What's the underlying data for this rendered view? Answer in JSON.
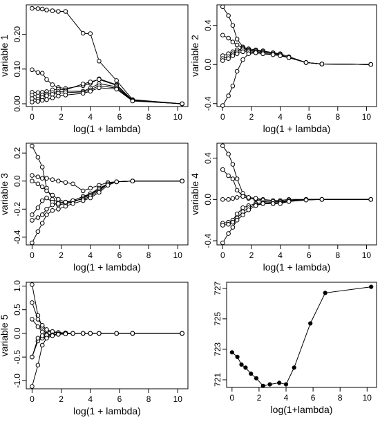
{
  "chart_data": [
    {
      "type": "line",
      "xlabel": "log(1 + lambda)",
      "ylabel": "variable 1",
      "xlim": [
        -0.4,
        10.7
      ],
      "ylim": [
        -0.008,
        0.285
      ],
      "xticks": [
        "0",
        "2",
        "4",
        "6",
        "8",
        "10"
      ],
      "yticks": [
        "0.00",
        "0.10",
        "0.20"
      ],
      "marker": "open-circle",
      "x": [
        0,
        0.4,
        0.7,
        1.0,
        1.4,
        1.8,
        2.3,
        3.5,
        4.0,
        4.6,
        5.8,
        6.9,
        10.3
      ],
      "series": [
        {
          "values": [
            0.275,
            0.274,
            0.273,
            0.27,
            0.268,
            0.266,
            0.266,
            0.203,
            0.202,
            0.123,
            0.067,
            0.012,
            0.0
          ]
        },
        {
          "values": [
            0.098,
            0.09,
            0.088,
            0.07,
            0.055,
            0.047,
            0.044,
            0.052,
            0.059,
            0.072,
            0.055,
            0.01,
            0.0
          ]
        },
        {
          "values": [
            0.033,
            0.032,
            0.033,
            0.035,
            0.04,
            0.042,
            0.04,
            0.057,
            0.063,
            0.07,
            0.053,
            0.01,
            0.0
          ]
        },
        {
          "values": [
            0.025,
            0.022,
            0.025,
            0.028,
            0.032,
            0.035,
            0.036,
            0.036,
            0.045,
            0.058,
            0.049,
            0.009,
            0.0
          ]
        },
        {
          "values": [
            0.015,
            0.013,
            0.018,
            0.023,
            0.027,
            0.03,
            0.032,
            0.034,
            0.04,
            0.052,
            0.045,
            0.009,
            0.0
          ]
        },
        {
          "values": [
            0.005,
            0.007,
            0.01,
            0.012,
            0.017,
            0.022,
            0.025,
            0.03,
            0.036,
            0.046,
            0.042,
            0.008,
            0.0
          ]
        }
      ]
    },
    {
      "type": "line",
      "xlabel": "log(1 + lambda)",
      "ylabel": "variable 2",
      "xlim": [
        -0.4,
        10.7
      ],
      "ylim": [
        -0.43,
        0.61
      ],
      "xticks": [
        "0",
        "2",
        "4",
        "6",
        "8",
        "10"
      ],
      "yticks": [
        "-0.4",
        "0.0",
        "0.4"
      ],
      "marker": "open-circle",
      "x": [
        0,
        0.4,
        0.7,
        1.0,
        1.4,
        1.8,
        2.3,
        2.8,
        3.5,
        4.0,
        4.6,
        5.8,
        6.9,
        10.3
      ],
      "series": [
        {
          "values": [
            0.59,
            0.5,
            0.4,
            0.26,
            0.18,
            0.16,
            0.15,
            0.14,
            0.12,
            0.11,
            0.08,
            0.02,
            0.005,
            0.0
          ]
        },
        {
          "values": [
            0.3,
            0.27,
            0.23,
            0.2,
            0.17,
            0.15,
            0.14,
            0.13,
            0.12,
            0.1,
            0.07,
            0.02,
            0.005,
            0.0
          ]
        },
        {
          "values": [
            0.09,
            0.11,
            0.13,
            0.15,
            0.16,
            0.15,
            0.14,
            0.13,
            0.12,
            0.1,
            0.07,
            0.02,
            0.005,
            0.0
          ]
        },
        {
          "values": [
            0.06,
            0.08,
            0.11,
            0.13,
            0.15,
            0.14,
            0.13,
            0.12,
            0.11,
            0.1,
            0.07,
            0.02,
            0.005,
            0.0
          ]
        },
        {
          "values": [
            0.04,
            0.06,
            0.09,
            0.11,
            0.13,
            0.13,
            0.12,
            0.11,
            0.1,
            0.09,
            0.07,
            0.02,
            0.005,
            0.0
          ]
        },
        {
          "values": [
            -0.42,
            -0.32,
            -0.22,
            -0.07,
            0.05,
            0.11,
            0.12,
            0.11,
            0.1,
            0.09,
            0.07,
            0.02,
            0.005,
            0.0
          ]
        }
      ]
    },
    {
      "type": "line",
      "xlabel": "log(1 + lambda)",
      "ylabel": "variable 3",
      "xlim": [
        -0.4,
        10.7
      ],
      "ylim": [
        -0.455,
        0.27
      ],
      "xticks": [
        "0",
        "2",
        "4",
        "6",
        "8",
        "10"
      ],
      "yticks": [
        "-0.4",
        "-0.2",
        "0.0",
        "0.2"
      ],
      "marker": "open-circle",
      "x": [
        0,
        0.4,
        0.7,
        1.0,
        1.4,
        1.8,
        2.3,
        2.8,
        3.5,
        4.0,
        4.6,
        5.2,
        5.8,
        6.9,
        10.3
      ],
      "series": [
        {
          "values": [
            0.25,
            0.17,
            0.1,
            -0.05,
            -0.13,
            -0.15,
            -0.15,
            -0.14,
            -0.11,
            -0.09,
            -0.06,
            -0.02,
            -0.005,
            0.0,
            0.0
          ]
        },
        {
          "values": [
            0.04,
            0.03,
            0.02,
            0.02,
            0.01,
            0.0,
            -0.01,
            -0.02,
            -0.07,
            -0.05,
            -0.03,
            -0.01,
            -0.005,
            0.0,
            0.0
          ]
        },
        {
          "values": [
            0.0,
            -0.02,
            -0.04,
            -0.07,
            -0.1,
            -0.13,
            -0.15,
            -0.15,
            -0.12,
            -0.09,
            -0.05,
            -0.02,
            -0.005,
            0.0,
            0.0
          ]
        },
        {
          "values": [
            -0.24,
            -0.19,
            -0.14,
            -0.12,
            -0.15,
            -0.17,
            -0.16,
            -0.15,
            -0.12,
            -0.1,
            -0.06,
            -0.02,
            -0.005,
            0.0,
            0.0
          ]
        },
        {
          "values": [
            -0.28,
            -0.26,
            -0.24,
            -0.2,
            -0.17,
            -0.16,
            -0.15,
            -0.14,
            -0.13,
            -0.11,
            -0.07,
            -0.02,
            -0.005,
            0.0,
            0.0
          ]
        },
        {
          "values": [
            -0.44,
            -0.36,
            -0.3,
            -0.24,
            -0.21,
            -0.2,
            -0.18,
            -0.16,
            -0.14,
            -0.12,
            -0.08,
            -0.03,
            -0.005,
            0.0,
            0.0
          ]
        }
      ]
    },
    {
      "type": "line",
      "xlabel": "log(1 + lambda)",
      "ylabel": "variable 4",
      "xlim": [
        -0.4,
        10.7
      ],
      "ylim": [
        -0.44,
        0.545
      ],
      "xticks": [
        "0",
        "2",
        "4",
        "6",
        "8",
        "10"
      ],
      "yticks": [
        "-0.4",
        "0.0",
        "0.4"
      ],
      "marker": "open-circle",
      "x": [
        0,
        0.4,
        0.7,
        1.0,
        1.4,
        1.8,
        2.3,
        2.8,
        3.5,
        4.0,
        4.6,
        5.8,
        6.9,
        10.3
      ],
      "series": [
        {
          "values": [
            0.52,
            0.44,
            0.34,
            0.2,
            0.06,
            0.02,
            0.01,
            0.0,
            -0.01,
            -0.01,
            0.0,
            0.0,
            0.0,
            0.0
          ]
        },
        {
          "values": [
            0.29,
            0.23,
            0.2,
            0.09,
            0.03,
            0.01,
            0.0,
            -0.02,
            -0.03,
            -0.02,
            -0.01,
            0.0,
            0.0,
            0.0
          ]
        },
        {
          "values": [
            0.0,
            0.0,
            0.01,
            0.02,
            0.03,
            0.02,
            0.01,
            -0.01,
            -0.02,
            -0.02,
            -0.01,
            0.0,
            0.0,
            0.0
          ]
        },
        {
          "values": [
            -0.23,
            -0.22,
            -0.2,
            -0.14,
            -0.08,
            -0.06,
            -0.04,
            -0.03,
            -0.04,
            -0.03,
            -0.01,
            0.0,
            0.0,
            0.0
          ]
        },
        {
          "values": [
            -0.25,
            -0.24,
            -0.22,
            -0.18,
            -0.12,
            -0.08,
            -0.05,
            -0.04,
            -0.04,
            -0.03,
            -0.02,
            -0.005,
            0.0,
            0.0
          ]
        },
        {
          "values": [
            -0.42,
            -0.33,
            -0.27,
            -0.2,
            -0.15,
            -0.1,
            -0.06,
            -0.04,
            -0.04,
            -0.04,
            -0.02,
            -0.005,
            0.0,
            0.0
          ]
        }
      ]
    },
    {
      "type": "line",
      "xlabel": "log(1 + lambda)",
      "ylabel": "variable 5",
      "xlim": [
        -0.4,
        10.7
      ],
      "ylim": [
        -1.17,
        1.08
      ],
      "xticks": [
        "0",
        "2",
        "4",
        "6",
        "8",
        "10"
      ],
      "yticks": [
        "-1.0",
        "-0.5",
        "0.0",
        "0.5",
        "1.0"
      ],
      "marker": "open-circle",
      "x": [
        0,
        0.4,
        0.7,
        1.0,
        1.4,
        1.8,
        2.3,
        2.8,
        3.5,
        4.0,
        4.6,
        5.8,
        6.9,
        10.3
      ],
      "series": [
        {
          "values": [
            1.03,
            0.38,
            0.13,
            0.05,
            0.02,
            0.01,
            0.01,
            0.0,
            0.0,
            0.0,
            0.0,
            0.0,
            0.0,
            0.0
          ]
        },
        {
          "values": [
            0.65,
            0.3,
            0.17,
            0.08,
            0.04,
            0.02,
            0.01,
            0.0,
            0.0,
            0.0,
            0.0,
            0.0,
            0.0,
            0.0
          ]
        },
        {
          "values": [
            0.3,
            0.14,
            0.03,
            -0.02,
            -0.03,
            -0.01,
            0.0,
            0.0,
            0.0,
            0.0,
            0.0,
            0.0,
            0.0,
            0.0
          ]
        },
        {
          "values": [
            -0.5,
            -0.16,
            -0.1,
            -0.07,
            -0.04,
            -0.02,
            -0.01,
            0.0,
            0.0,
            0.0,
            0.0,
            0.0,
            0.0,
            0.0
          ]
        },
        {
          "values": [
            -0.5,
            -0.1,
            -0.05,
            -0.04,
            -0.03,
            -0.02,
            -0.01,
            0.0,
            0.0,
            0.0,
            0.0,
            0.0,
            0.0,
            0.0
          ]
        },
        {
          "values": [
            -1.12,
            -0.67,
            -0.25,
            -0.1,
            -0.05,
            -0.02,
            -0.01,
            0.0,
            0.0,
            0.0,
            0.0,
            0.0,
            0.0,
            0.0
          ]
        }
      ]
    },
    {
      "type": "line",
      "xlabel": "log(1+lambda)",
      "ylabel": "",
      "xlim": [
        -0.4,
        10.7
      ],
      "ylim": [
        720.5,
        727.4
      ],
      "xticks": [
        "0",
        "2",
        "4",
        "6",
        "8",
        "10"
      ],
      "yticks": [
        "721",
        "723",
        "725",
        "727"
      ],
      "marker": "filled-circle",
      "x": [
        0,
        0.4,
        0.7,
        1.0,
        1.4,
        1.8,
        2.3,
        2.8,
        3.5,
        4.0,
        4.6,
        5.8,
        6.9,
        10.3
      ],
      "series": [
        {
          "values": [
            722.8,
            722.5,
            722.0,
            721.8,
            721.4,
            721.1,
            720.6,
            720.7,
            720.8,
            720.7,
            721.8,
            724.7,
            726.7,
            727.1
          ]
        }
      ]
    }
  ]
}
